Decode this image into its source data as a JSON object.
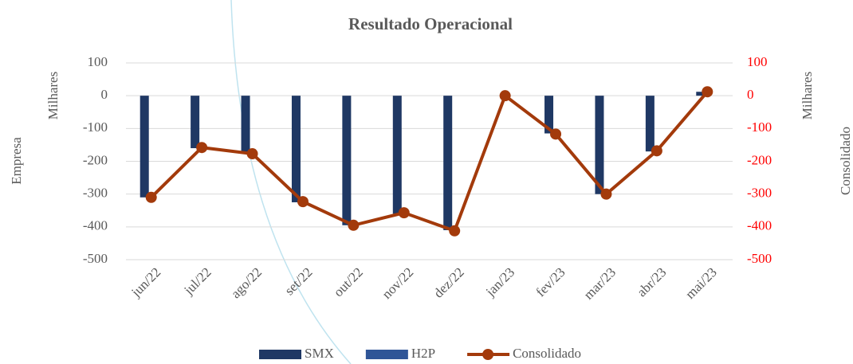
{
  "chart_data": {
    "type": "bar_line",
    "title": "Resultado Operacional",
    "y_label": "Empresa",
    "y_unit": "Milhares",
    "y2_label": "Consolidado",
    "y2_unit": "Milhares",
    "categories": [
      "jun/22",
      "jul/22",
      "ago/22",
      "set/22",
      "out/22",
      "nov/22",
      "dez/22",
      "jan/23",
      "fev/23",
      "mar/23",
      "abr/23",
      "mai/23"
    ],
    "series": [
      {
        "name": "SMX",
        "type": "bar",
        "color": "#1f3864",
        "values": [
          -310,
          -160,
          -175,
          -325,
          -395,
          -360,
          -410,
          0,
          -115,
          -300,
          -170,
          12
        ]
      },
      {
        "name": "H2P",
        "type": "bar",
        "color": "#2f5597",
        "values": [
          0,
          0,
          0,
          0,
          0,
          0,
          0,
          0,
          0,
          0,
          0,
          0
        ]
      },
      {
        "name": "Consolidado",
        "type": "line",
        "axis": "y2",
        "color": "#a33a0b",
        "values": [
          -310,
          -158,
          -177,
          -323,
          -395,
          -357,
          -412,
          0,
          -117,
          -300,
          -168,
          12
        ]
      }
    ],
    "ylim": [
      -500,
      100
    ],
    "yticks": [
      100,
      0,
      -100,
      -200,
      -300,
      -400,
      -500
    ],
    "y2lim": [
      -500,
      100
    ],
    "y2ticks": [
      100,
      0,
      -100,
      -200,
      -300,
      -400,
      -500
    ],
    "y2_tick_color": "#ff0000",
    "y_tick_color": "#595959",
    "grid": true,
    "legend": "bottom"
  }
}
